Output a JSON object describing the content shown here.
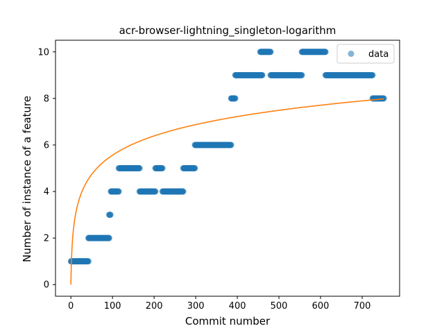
{
  "chart_data": {
    "type": "scatter",
    "title": "acr-browser-lightning_singleton-logarithm",
    "xlabel": "Commit number",
    "ylabel": "Number of instance of a feature",
    "xlim": [
      -37,
      790
    ],
    "ylim": [
      -0.5,
      10.5
    ],
    "xticks": [
      0,
      100,
      200,
      300,
      400,
      500,
      600,
      700
    ],
    "yticks": [
      0,
      2,
      4,
      6,
      8,
      10
    ],
    "grid": false,
    "legend": {
      "position": "top-right",
      "entries": [
        "data"
      ]
    },
    "colors": {
      "data": "#1f77b4",
      "fit": "#ff7f0e",
      "axes": "#000000",
      "background": "#ffffff"
    },
    "series": [
      {
        "name": "data",
        "kind": "scatter",
        "segments": [
          {
            "x_start": 0,
            "x_end": 42,
            "y": 1
          },
          {
            "x_start": 42,
            "x_end": 92,
            "y": 2
          },
          {
            "x_start": 92,
            "x_end": 95,
            "y": 3
          },
          {
            "x_start": 96,
            "x_end": 115,
            "y": 4
          },
          {
            "x_start": 115,
            "x_end": 165,
            "y": 5
          },
          {
            "x_start": 165,
            "x_end": 203,
            "y": 4
          },
          {
            "x_start": 203,
            "x_end": 220,
            "y": 5
          },
          {
            "x_start": 220,
            "x_end": 270,
            "y": 4
          },
          {
            "x_start": 270,
            "x_end": 298,
            "y": 5
          },
          {
            "x_start": 298,
            "x_end": 385,
            "y": 6
          },
          {
            "x_start": 385,
            "x_end": 395,
            "y": 8
          },
          {
            "x_start": 395,
            "x_end": 460,
            "y": 9
          },
          {
            "x_start": 455,
            "x_end": 480,
            "y": 10
          },
          {
            "x_start": 480,
            "x_end": 555,
            "y": 9
          },
          {
            "x_start": 555,
            "x_end": 612,
            "y": 10
          },
          {
            "x_start": 612,
            "x_end": 725,
            "y": 9
          },
          {
            "x_start": 725,
            "x_end": 752,
            "y": 8
          }
        ]
      },
      {
        "name": "",
        "kind": "line",
        "fit": "logarithmic",
        "x_range": [
          0,
          752
        ],
        "points": [
          [
            0,
            0
          ],
          [
            10,
            2.78
          ],
          [
            100,
            5.55
          ],
          [
            300,
            6.88
          ],
          [
            500,
            7.49
          ],
          [
            752,
            7.98
          ]
        ]
      }
    ]
  }
}
